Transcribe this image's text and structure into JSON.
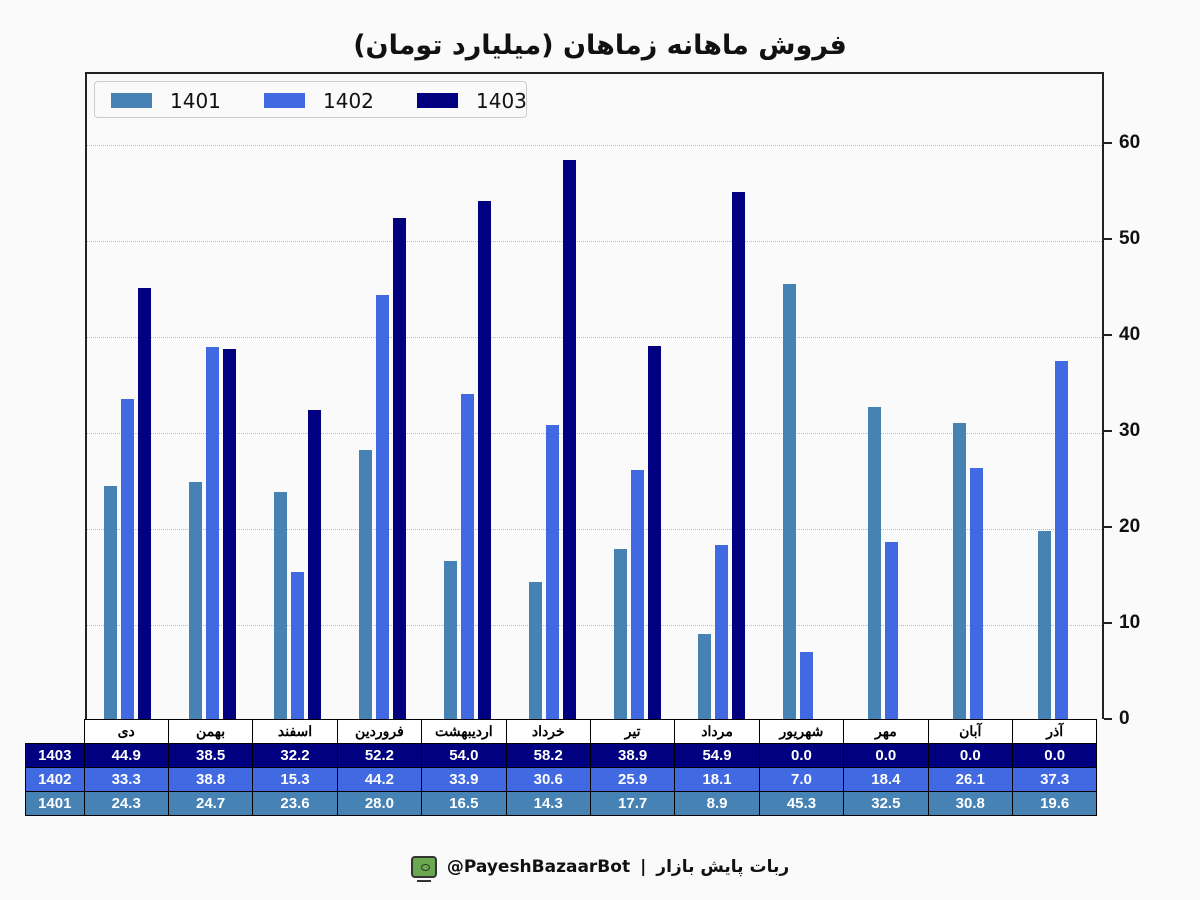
{
  "chart_data": {
    "type": "bar",
    "title": "فروش ماهانه زماهان (میلیارد تومان)",
    "xlabel": "",
    "ylabel": "",
    "ylim": [
      0,
      67.4
    ],
    "yticks": [
      0,
      10,
      20,
      30,
      40,
      50,
      60
    ],
    "y_axis_position": "right",
    "grid": true,
    "legend_position": "upper left",
    "categories": [
      "دی",
      "بهمن",
      "اسفند",
      "فروردین",
      "اردیبهشت",
      "خرداد",
      "تیر",
      "مرداد",
      "شهریور",
      "مهر",
      "آبان",
      "آذر"
    ],
    "series": [
      {
        "name": "1401",
        "color": "#4682B4",
        "values": [
          24.3,
          24.7,
          23.6,
          28.0,
          16.5,
          14.3,
          17.7,
          8.9,
          45.3,
          32.5,
          30.8,
          19.6
        ]
      },
      {
        "name": "1402",
        "color": "#4169E1",
        "values": [
          33.3,
          38.8,
          15.3,
          44.2,
          33.9,
          30.6,
          25.9,
          18.1,
          7.0,
          18.4,
          26.1,
          37.3
        ]
      },
      {
        "name": "1403",
        "color": "#000080",
        "values": [
          44.9,
          38.5,
          32.2,
          52.2,
          54.0,
          58.2,
          38.9,
          54.9,
          0.0,
          0.0,
          0.0,
          0.0
        ]
      }
    ]
  },
  "table": {
    "row_labels": [
      "1403",
      "1402",
      "1401"
    ],
    "rows": [
      [
        "44.9",
        "38.5",
        "32.2",
        "52.2",
        "54.0",
        "58.2",
        "38.9",
        "54.9",
        "0.0",
        "0.0",
        "0.0",
        "0.0"
      ],
      [
        "33.3",
        "38.8",
        "15.3",
        "44.2",
        "33.9",
        "30.6",
        "25.9",
        "18.1",
        "7.0",
        "18.4",
        "26.1",
        "37.3"
      ],
      [
        "24.3",
        "24.7",
        "23.6",
        "28.0",
        "16.5",
        "14.3",
        "17.7",
        "8.9",
        "45.3",
        "32.5",
        "30.8",
        "19.6"
      ]
    ]
  },
  "footer": {
    "handle": "@PayeshBazaarBot",
    "separator": "|",
    "bot_name": "ربات پایش بازار",
    "icon": "bot-monitor-icon"
  }
}
